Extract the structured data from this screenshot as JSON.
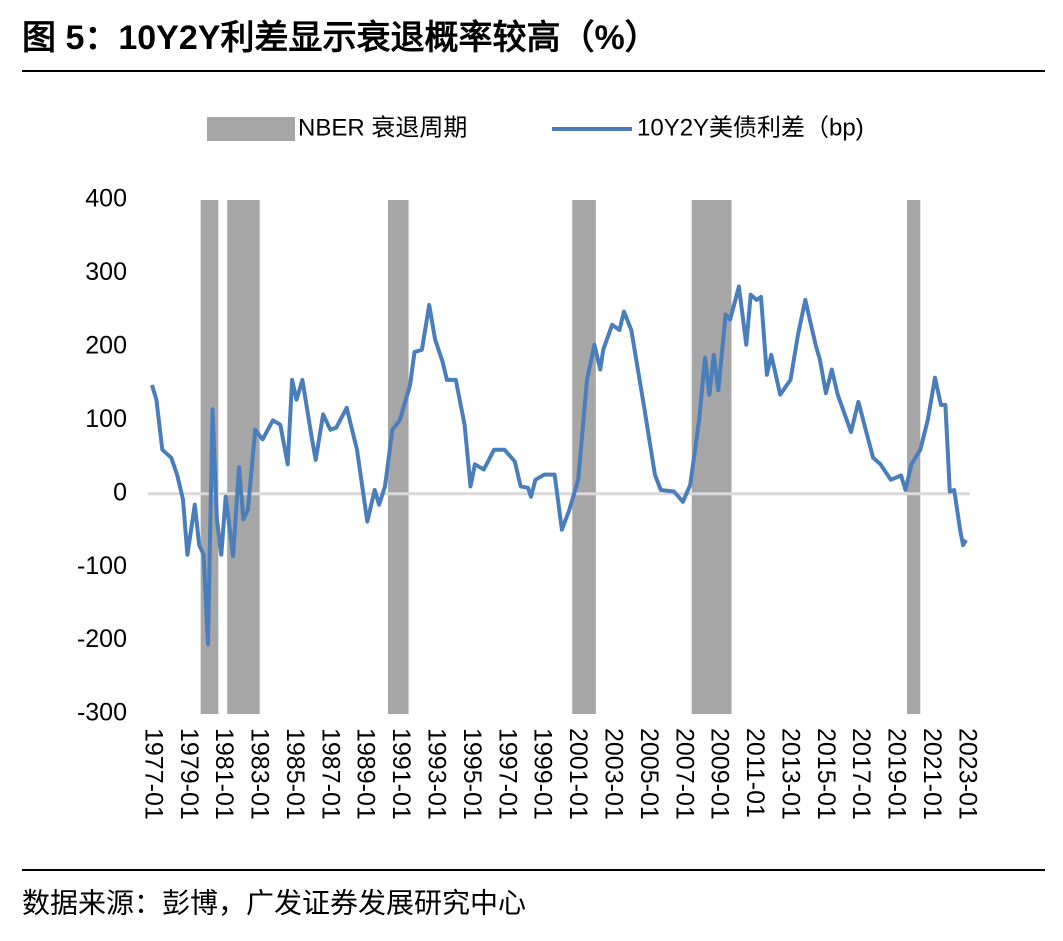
{
  "chart_data": {
    "type": "line",
    "title": "图 5：10Y2Y利差显示衰退概率较高（%）",
    "source": "数据来源：彭博，广发证券发展研究中心",
    "x": [
      "1977-01",
      "1977-04",
      "1977-08",
      "1978-02",
      "1978-06",
      "1978-10",
      "1979-01",
      "1979-06",
      "1979-09",
      "1979-12",
      "1980-03",
      "1980-06",
      "1980-09",
      "1980-12",
      "1981-03",
      "1981-08",
      "1981-12",
      "1982-03",
      "1982-06",
      "1982-11",
      "1983-04",
      "1983-11",
      "1984-04",
      "1984-09",
      "1984-12",
      "1985-03",
      "1985-07",
      "1986-01",
      "1986-04",
      "1986-09",
      "1987-02",
      "1987-06",
      "1988-01",
      "1988-08",
      "1989-03",
      "1989-08",
      "1989-11",
      "1990-03",
      "1990-08",
      "1991-01",
      "1991-08",
      "1991-11",
      "1992-04",
      "1992-09",
      "1993-01",
      "1993-06",
      "1993-09",
      "1994-03",
      "1994-09",
      "1995-01",
      "1995-04",
      "1995-10",
      "1996-05",
      "1996-12",
      "1997-07",
      "1997-11",
      "1998-04",
      "1998-06",
      "1998-09",
      "1999-03",
      "1999-10",
      "2000-03",
      "2000-08",
      "2001-02",
      "2001-08",
      "2002-01",
      "2002-05",
      "2002-07",
      "2003-01",
      "2003-06",
      "2003-09",
      "2004-02",
      "2004-11",
      "2005-06",
      "2005-10",
      "2006-07",
      "2007-01",
      "2007-06",
      "2007-12",
      "2008-04",
      "2008-07",
      "2008-10",
      "2009-01",
      "2009-06",
      "2009-09",
      "2010-03",
      "2010-08",
      "2010-11",
      "2011-03",
      "2011-06",
      "2011-10",
      "2012-01",
      "2012-07",
      "2013-02",
      "2013-07",
      "2013-12",
      "2014-07",
      "2014-10",
      "2015-02",
      "2015-06",
      "2015-10",
      "2016-07",
      "2016-12",
      "2017-05",
      "2017-10",
      "2018-03",
      "2018-10",
      "2019-05",
      "2019-08",
      "2019-12",
      "2020-06",
      "2020-11",
      "2021-04",
      "2021-08",
      "2021-11",
      "2022-02",
      "2022-05",
      "2022-09",
      "2022-11",
      "2023-01"
    ],
    "series": [
      {
        "name": "10Y2Y美债利差（bp)",
        "color": "#4a7ebb",
        "values": [
          148,
          128,
          60,
          49,
          26,
          -8,
          -83,
          -15,
          -70,
          -83,
          -205,
          115,
          -35,
          -83,
          -4,
          -85,
          36,
          -35,
          -22,
          87,
          74,
          100,
          94,
          40,
          155,
          128,
          155,
          80,
          46,
          108,
          87,
          90,
          117,
          60,
          -38,
          5,
          -15,
          10,
          87,
          100,
          148,
          193,
          196,
          257,
          210,
          180,
          155,
          155,
          94,
          10,
          40,
          33,
          60,
          60,
          44,
          10,
          8,
          -4,
          19,
          26,
          26,
          -49,
          -22,
          19,
          155,
          203,
          169,
          196,
          230,
          223,
          248,
          223,
          115,
          26,
          5,
          3,
          -11,
          12,
          100,
          185,
          135,
          189,
          141,
          244,
          237,
          282,
          203,
          271,
          264,
          268,
          162,
          189,
          135,
          155,
          216,
          264,
          203,
          182,
          137,
          169,
          135,
          84,
          125,
          87,
          49,
          40,
          19,
          25,
          5,
          40,
          60,
          100,
          158,
          121,
          121,
          3,
          5,
          -49,
          -70,
          -63
        ]
      }
    ],
    "recessions": {
      "name": "NBER 衰退周期",
      "color": "#a6a6a6",
      "periods": [
        [
          "1979-10",
          "1980-10"
        ],
        [
          "1981-04",
          "1983-02"
        ],
        [
          "1990-05",
          "1991-07"
        ],
        [
          "2000-10",
          "2002-02"
        ],
        [
          "2007-07",
          "2009-10"
        ],
        [
          "2019-09",
          "2020-06"
        ]
      ]
    },
    "xlim": [
      "1977-01",
      "2023-01"
    ],
    "xticks": [
      "1977-01",
      "1979-01",
      "1981-01",
      "1983-01",
      "1985-01",
      "1987-01",
      "1989-01",
      "1991-01",
      "1993-01",
      "1995-01",
      "1997-01",
      "1999-01",
      "2001-01",
      "2003-01",
      "2005-01",
      "2007-01",
      "2009-01",
      "2011-01",
      "2013-01",
      "2015-01",
      "2017-01",
      "2019-01",
      "2021-01",
      "2023-01"
    ],
    "ylim": [
      -300,
      400
    ],
    "yticks": [
      -300,
      -200,
      -100,
      0,
      100,
      200,
      300,
      400
    ]
  }
}
